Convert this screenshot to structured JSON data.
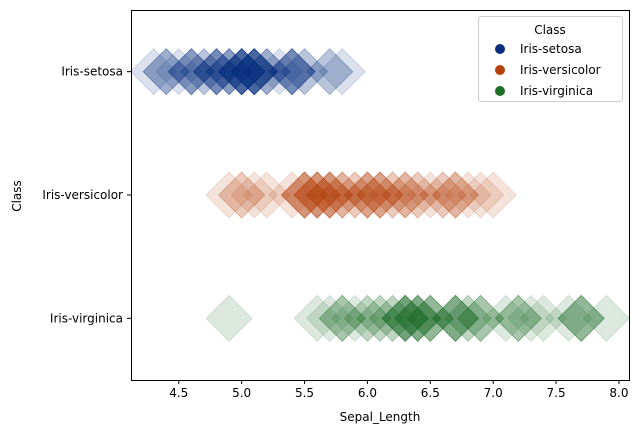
{
  "chart_data": {
    "type": "scatter",
    "xlabel": "Sepal_Length",
    "ylabel": "Class",
    "xlim": [
      4.12,
      8.08
    ],
    "x_ticks": [
      4.5,
      5.0,
      5.5,
      6.0,
      6.5,
      7.0,
      7.5,
      8.0
    ],
    "x_tick_labels": [
      "4.5",
      "5.0",
      "5.5",
      "6.0",
      "6.5",
      "7.0",
      "7.5",
      "8.0"
    ],
    "categories": [
      "Iris-setosa",
      "Iris-versicolor",
      "Iris-virginica"
    ],
    "grid": false,
    "legend": {
      "title": "Class",
      "position": "top-right"
    },
    "marker": "diamond",
    "marker_alpha": 0.15,
    "series": [
      {
        "name": "Iris-setosa",
        "color": "#0a2d7e",
        "x": [
          5.1,
          4.9,
          4.7,
          4.6,
          5.0,
          5.4,
          4.6,
          5.0,
          4.4,
          4.9,
          5.4,
          4.8,
          4.8,
          4.3,
          5.8,
          5.7,
          5.4,
          5.1,
          5.7,
          5.1,
          5.4,
          5.1,
          4.6,
          5.1,
          4.8,
          5.0,
          5.0,
          5.2,
          5.2,
          4.7,
          4.8,
          5.4,
          5.2,
          5.5,
          4.9,
          5.0,
          5.5,
          4.9,
          4.4,
          5.1,
          5.0,
          4.5,
          4.4,
          5.0,
          5.1,
          4.8,
          5.1,
          4.6,
          5.3,
          5.0
        ]
      },
      {
        "name": "Iris-versicolor",
        "color": "#b5410f",
        "x": [
          7.0,
          6.4,
          6.9,
          5.5,
          6.5,
          5.7,
          6.3,
          4.9,
          6.6,
          5.2,
          5.0,
          5.9,
          6.0,
          6.1,
          5.6,
          6.7,
          5.6,
          5.8,
          6.2,
          5.6,
          5.9,
          6.1,
          6.3,
          6.1,
          6.4,
          6.6,
          6.8,
          6.7,
          6.0,
          5.7,
          5.5,
          5.5,
          5.8,
          6.0,
          5.4,
          6.0,
          6.7,
          6.3,
          5.6,
          5.5,
          5.5,
          6.1,
          5.8,
          5.0,
          5.6,
          5.7,
          5.7,
          6.2,
          5.1,
          5.7
        ]
      },
      {
        "name": "Iris-virginica",
        "color": "#1e6e28",
        "x": [
          6.3,
          5.8,
          7.1,
          6.3,
          6.5,
          7.6,
          4.9,
          7.3,
          6.7,
          7.2,
          6.5,
          6.4,
          6.8,
          5.7,
          5.8,
          6.4,
          6.5,
          7.7,
          7.7,
          6.0,
          6.9,
          5.6,
          7.7,
          6.3,
          6.7,
          7.2,
          6.2,
          6.1,
          6.4,
          7.2,
          7.4,
          7.9,
          6.4,
          6.3,
          6.1,
          7.7,
          6.3,
          6.4,
          6.0,
          6.9,
          6.7,
          6.9,
          5.8,
          6.8,
          6.7,
          6.7,
          6.3,
          6.5,
          6.2,
          5.9
        ]
      }
    ]
  }
}
